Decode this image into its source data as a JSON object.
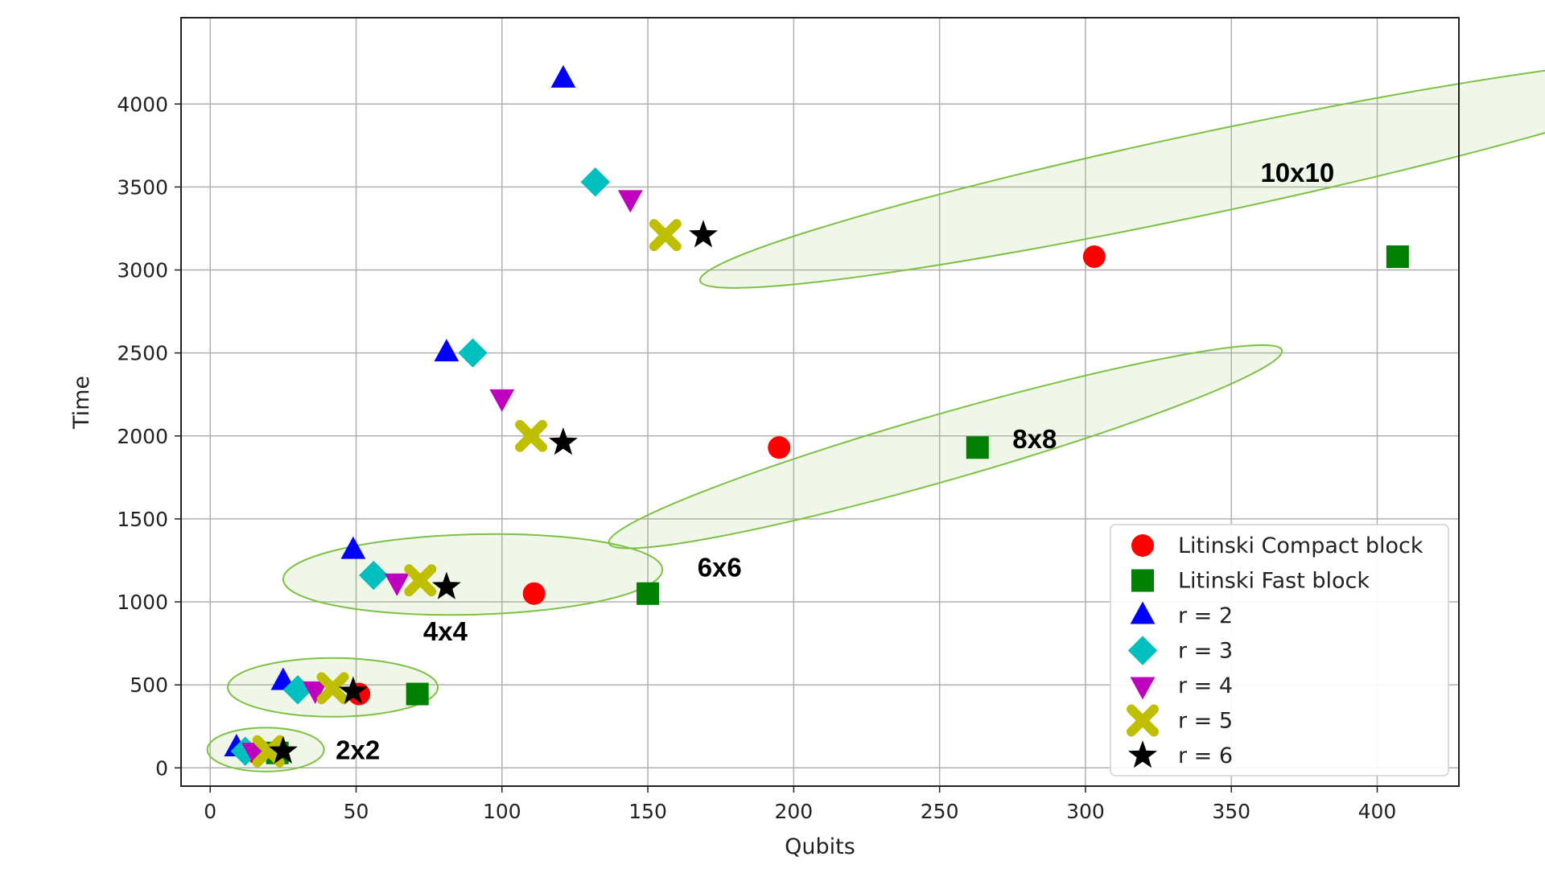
{
  "chart_data": {
    "type": "scatter",
    "xlabel": "Qubits",
    "ylabel": "Time",
    "xlim": [
      -10,
      428
    ],
    "ylim": [
      -110,
      4520
    ],
    "xticks": [
      0,
      50,
      100,
      150,
      200,
      250,
      300,
      350,
      400
    ],
    "yticks": [
      0,
      500,
      1000,
      1500,
      2000,
      2500,
      3000,
      3500,
      4000
    ],
    "grid": true,
    "legend_position": "lower-right",
    "series": [
      {
        "name": "Litinski Compact block",
        "marker": "circle",
        "color": "#ff0000",
        "x": [
          16,
          51,
          111,
          195,
          303
        ],
        "y": [
          90,
          445,
          1050,
          1930,
          3080
        ]
      },
      {
        "name": "Litinski Fast block",
        "marker": "square",
        "color": "#008000",
        "x": [
          23,
          71,
          150,
          263,
          407
        ],
        "y": [
          90,
          445,
          1050,
          1930,
          3080
        ]
      },
      {
        "name": "r = 2",
        "marker": "triangle-up",
        "color": "#0000ff",
        "x": [
          9,
          25,
          49,
          81,
          121
        ],
        "y": [
          120,
          520,
          1310,
          2500,
          4150
        ]
      },
      {
        "name": "r = 3",
        "marker": "diamond",
        "color": "#00bfbf",
        "x": [
          12,
          30,
          56,
          90,
          132
        ],
        "y": [
          100,
          470,
          1160,
          2500,
          3530
        ]
      },
      {
        "name": "r = 4",
        "marker": "triangle-down",
        "color": "#bf00bf",
        "x": [
          15,
          36,
          64,
          100,
          144
        ],
        "y": [
          100,
          470,
          1120,
          2230,
          3430
        ]
      },
      {
        "name": "r = 5",
        "marker": "x",
        "color": "#bfbf00",
        "x": [
          20,
          42,
          72,
          110,
          156
        ],
        "y": [
          100,
          480,
          1130,
          2000,
          3210
        ]
      },
      {
        "name": "r = 6",
        "marker": "star",
        "color": "#000000",
        "x": [
          25,
          49,
          81,
          121,
          169
        ],
        "y": [
          100,
          460,
          1090,
          1960,
          3210
        ]
      }
    ],
    "groups": [
      {
        "label": "2x2",
        "center": [
          19,
          110
        ],
        "rx": 20,
        "ry": 132,
        "angle": 0,
        "label_at": [
          43,
          110
        ]
      },
      {
        "label": "4x4",
        "center": [
          42,
          485
        ],
        "rx": 36,
        "ry": 177,
        "angle": 0,
        "label_at": [
          73,
          825
        ]
      },
      {
        "label": "6x6",
        "center": [
          90,
          1165
        ],
        "rx": 65,
        "ry": 242,
        "angle": -1.5,
        "label_at": [
          167,
          1210
        ]
      },
      {
        "label": "8x8",
        "center": [
          252,
          1935
        ],
        "rx": 120,
        "ry": 200,
        "angle": -16,
        "label_at": [
          275,
          1985
        ]
      },
      {
        "label": "10x10",
        "center": [
          342,
          3585
        ],
        "rx": 178,
        "ry": 245,
        "angle": -12,
        "label_at": [
          360,
          3590
        ]
      }
    ]
  }
}
